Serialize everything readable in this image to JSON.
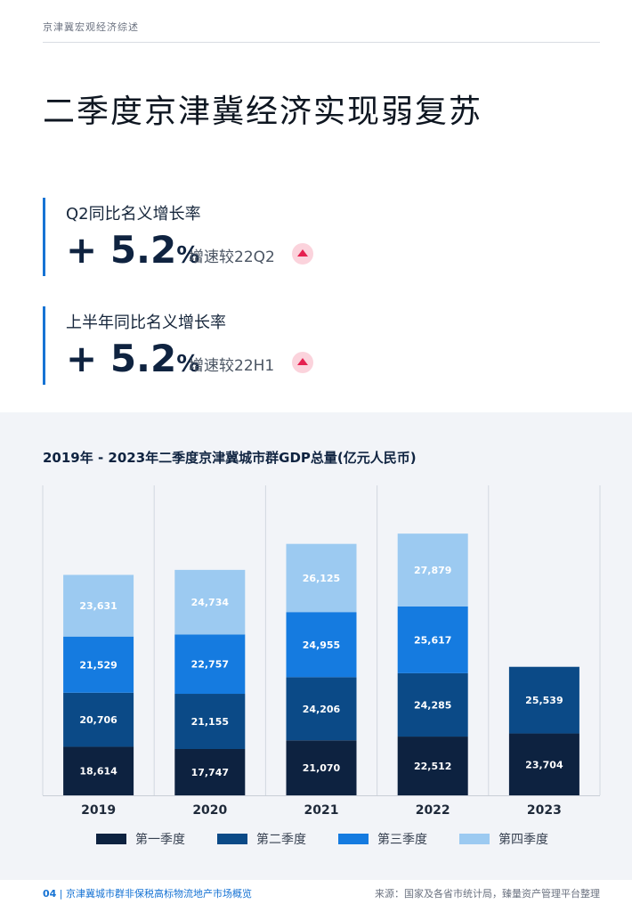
{
  "header": {
    "section": "京津冀宏观经济综述"
  },
  "title": "二季度京津冀经济实现弱复苏",
  "metrics": [
    {
      "label": "Q2同比名义增长率",
      "value": "+ 5.2",
      "unit": "%",
      "note": "增速较22Q2",
      "trend": "up"
    },
    {
      "label": "上半年同比名义增长率",
      "value": "+ 5.2",
      "unit": "%",
      "note": "增速较22H1",
      "trend": "up"
    }
  ],
  "colors": {
    "q1": "#0d2240",
    "q2": "#0b4a87",
    "q3": "#157be0",
    "q4": "#9ccaf1",
    "accent": "#1673d4",
    "trend_up": "#e5204f"
  },
  "chart_data": {
    "type": "bar",
    "stacked": true,
    "title": "2019年 - 2023年二季度京津冀城市群GDP总量(亿元人民币)",
    "categories": [
      "2019",
      "2020",
      "2021",
      "2022",
      "2023"
    ],
    "series": [
      {
        "name": "第一季度",
        "values": [
          18614,
          17747,
          21070,
          22512,
          23704
        ]
      },
      {
        "name": "第二季度",
        "values": [
          20706,
          21155,
          24206,
          24285,
          25539
        ]
      },
      {
        "name": "第三季度",
        "values": [
          21529,
          22757,
          24955,
          25617,
          null
        ]
      },
      {
        "name": "第四季度",
        "values": [
          23631,
          24734,
          26125,
          27879,
          null
        ]
      }
    ],
    "grid": "vertical",
    "legend": "bottom"
  },
  "footer": {
    "page": "04",
    "doc": "京津冀城市群非保税高标物流地产市场概览",
    "source": "来源：国家及各省市统计局，臻量资产管理平台整理"
  }
}
